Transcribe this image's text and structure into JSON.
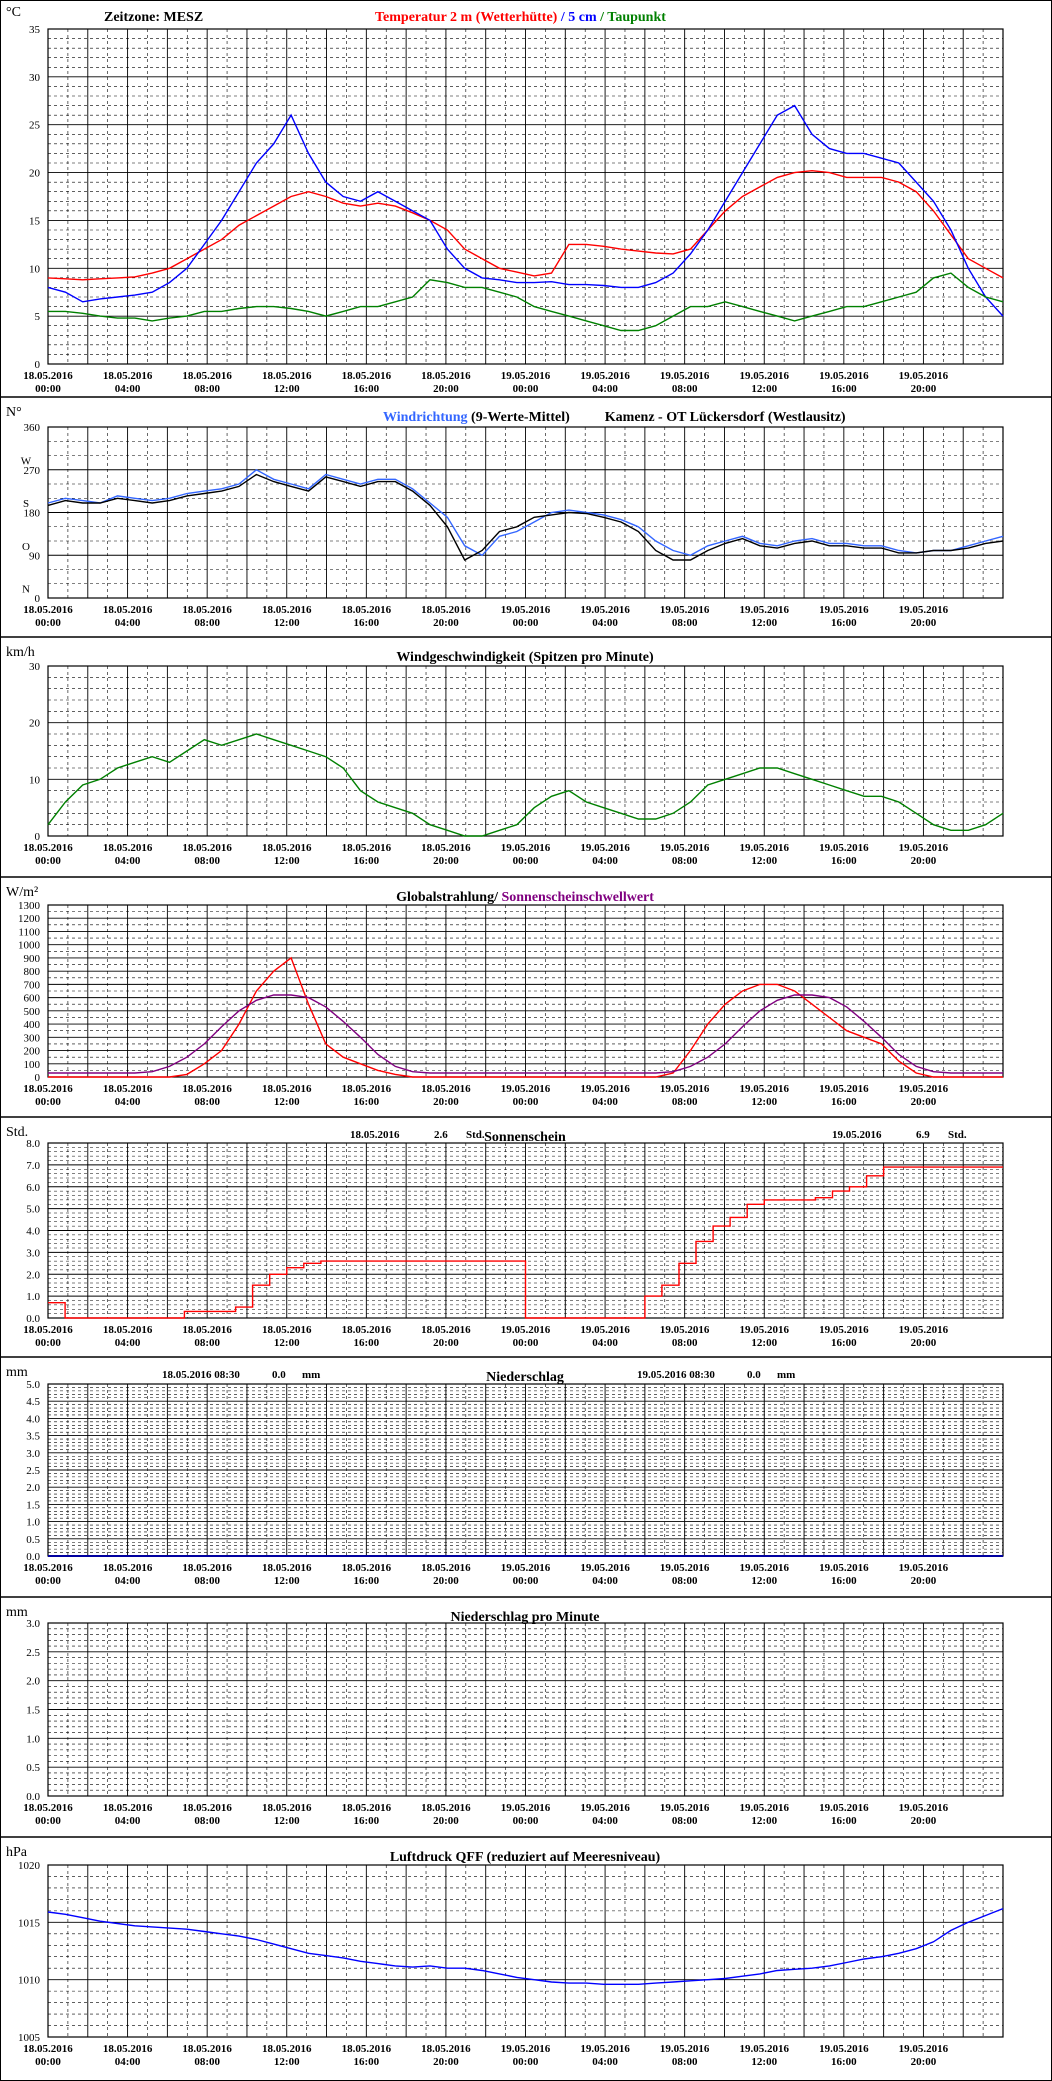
{
  "x_axis": {
    "ticks": [
      {
        "date": "18.05.2016",
        "time": "00:00"
      },
      {
        "date": "18.05.2016",
        "time": "04:00"
      },
      {
        "date": "18.05.2016",
        "time": "08:00"
      },
      {
        "date": "18.05.2016",
        "time": "12:00"
      },
      {
        "date": "18.05.2016",
        "time": "16:00"
      },
      {
        "date": "18.05.2016",
        "time": "20:00"
      },
      {
        "date": "19.05.2016",
        "time": "00:00"
      },
      {
        "date": "19.05.2016",
        "time": "04:00"
      },
      {
        "date": "19.05.2016",
        "time": "08:00"
      },
      {
        "date": "19.05.2016",
        "time": "12:00"
      },
      {
        "date": "19.05.2016",
        "time": "16:00"
      },
      {
        "date": "19.05.2016",
        "time": "20:00"
      }
    ]
  },
  "colors": {
    "temp2m": "#ff0000",
    "temp5cm": "#0000ff",
    "dew": "#008000",
    "wind_dir_mean": "#3366ff",
    "wind_dir": "#000000",
    "wind_speed": "#008000",
    "radiation": "#ff0000",
    "threshold": "#800080",
    "sun": "#ff0000",
    "precip": "#0000a0",
    "pressure": "#0000ff",
    "frame": "#000000"
  },
  "chart_data": [
    {
      "id": "temperature",
      "type": "line",
      "unit": "°C",
      "ylim": [
        0,
        35
      ],
      "yticks": [
        0,
        5,
        10,
        15,
        20,
        25,
        30,
        35
      ],
      "header_left": "Zeitzone: MESZ",
      "title_parts": [
        {
          "text": "Temperatur 2 m (Wetterhütte)",
          "color": "#ff0000"
        },
        {
          "text": " / ",
          "color": "#0000ff"
        },
        {
          "text": "5 cm",
          "color": "#0000ff"
        },
        {
          "text": " / ",
          "color": "#008000"
        },
        {
          "text": "Taupunkt",
          "color": "#008000"
        }
      ],
      "series": [
        {
          "key": "temp2m",
          "values": [
            9.0,
            8.9,
            8.8,
            8.9,
            9.0,
            9.1,
            9.5,
            10.0,
            11.0,
            12.0,
            13.0,
            14.5,
            15.5,
            16.5,
            17.5,
            18.0,
            17.5,
            16.8,
            16.5,
            16.8,
            16.5,
            15.8,
            15.0,
            14.0,
            12.0,
            11.0,
            10.0,
            9.6,
            9.2,
            9.5,
            12.5,
            12.5,
            12.3,
            12.0,
            11.8,
            11.6,
            11.5,
            12.0,
            14.0,
            16.0,
            17.5,
            18.5,
            19.5,
            20.0,
            20.2,
            20.0,
            19.5,
            19.5,
            19.5,
            19.0,
            18.0,
            16.0,
            13.5,
            11.0,
            10.0,
            9.0
          ]
        },
        {
          "key": "temp5cm",
          "values": [
            8.0,
            7.5,
            6.5,
            6.8,
            7.0,
            7.2,
            7.5,
            8.5,
            10.0,
            12.5,
            15.0,
            18.0,
            21.0,
            23.0,
            26.0,
            22.0,
            19.0,
            17.5,
            17.0,
            18.0,
            17.0,
            16.0,
            15.0,
            12.0,
            10.0,
            9.0,
            8.8,
            8.5,
            8.5,
            8.6,
            8.3,
            8.3,
            8.2,
            8.0,
            8.0,
            8.5,
            9.5,
            11.5,
            14.0,
            17.0,
            20.0,
            23.0,
            26.0,
            27.0,
            24.0,
            22.5,
            22.0,
            22.0,
            21.5,
            21.0,
            19.0,
            17.0,
            14.0,
            10.0,
            7.0,
            5.0
          ]
        },
        {
          "key": "dew",
          "values": [
            5.5,
            5.5,
            5.3,
            5.0,
            4.8,
            4.8,
            4.5,
            4.8,
            5.0,
            5.5,
            5.5,
            5.8,
            6.0,
            6.0,
            5.8,
            5.5,
            5.0,
            5.5,
            6.0,
            6.0,
            6.5,
            7.0,
            8.8,
            8.5,
            8.0,
            8.0,
            7.5,
            7.0,
            6.0,
            5.5,
            5.0,
            4.5,
            4.0,
            3.5,
            3.5,
            4.0,
            5.0,
            6.0,
            6.0,
            6.5,
            6.0,
            5.5,
            5.0,
            4.5,
            5.0,
            5.5,
            6.0,
            6.0,
            6.5,
            7.0,
            7.5,
            9.0,
            9.5,
            8.0,
            7.0,
            6.5
          ]
        }
      ]
    },
    {
      "id": "wind_direction",
      "type": "line",
      "unit": "N°",
      "ylim": [
        0,
        360
      ],
      "yticks": [
        0,
        90,
        180,
        270,
        360
      ],
      "compass_labels": [
        "N",
        "O",
        "S",
        "W",
        "N"
      ],
      "compass_values": [
        20,
        110,
        200,
        290,
        360
      ],
      "title_parts": [
        {
          "text": "Windrichtung",
          "color": "#3366ff"
        },
        {
          "text": " (9-Werte-Mittel)",
          "color": "#000000"
        },
        {
          "text": "          Kamenz - OT Lückersdorf (Westlausitz)",
          "color": "#000000"
        }
      ],
      "series": [
        {
          "key": "wind_dir_mean",
          "values": [
            200,
            210,
            205,
            200,
            215,
            210,
            205,
            210,
            220,
            225,
            230,
            240,
            270,
            250,
            240,
            230,
            260,
            250,
            240,
            250,
            250,
            230,
            200,
            170,
            110,
            90,
            130,
            140,
            160,
            180,
            185,
            180,
            175,
            165,
            150,
            120,
            100,
            90,
            110,
            120,
            130,
            115,
            110,
            120,
            125,
            115,
            115,
            110,
            110,
            100,
            95,
            100,
            100,
            110,
            120,
            130
          ]
        },
        {
          "key": "wind_dir",
          "values": [
            195,
            205,
            200,
            200,
            210,
            205,
            200,
            205,
            215,
            220,
            225,
            235,
            260,
            245,
            235,
            225,
            255,
            245,
            235,
            245,
            245,
            225,
            195,
            150,
            80,
            100,
            140,
            150,
            170,
            175,
            180,
            178,
            170,
            160,
            140,
            100,
            80,
            80,
            100,
            115,
            125,
            110,
            105,
            115,
            120,
            110,
            110,
            105,
            105,
            95,
            95,
            100,
            100,
            105,
            115,
            120
          ]
        }
      ]
    },
    {
      "id": "wind_speed",
      "type": "line",
      "unit": "km/h",
      "ylim": [
        0,
        30
      ],
      "yticks": [
        0,
        10,
        20,
        30
      ],
      "title_parts": [
        {
          "text": "Windgeschwindigkeit (Spitzen pro Minute)",
          "color": "#000000"
        }
      ],
      "series": [
        {
          "key": "wind_speed",
          "values": [
            2,
            6,
            9,
            10,
            12,
            13,
            14,
            13,
            15,
            17,
            16,
            17,
            18,
            17,
            16,
            15,
            14,
            12,
            8,
            6,
            5,
            4,
            2,
            1,
            0,
            0,
            1,
            2,
            5,
            7,
            8,
            6,
            5,
            4,
            3,
            3,
            4,
            6,
            9,
            10,
            11,
            12,
            12,
            11,
            10,
            9,
            8,
            7,
            7,
            6,
            4,
            2,
            1,
            1,
            2,
            4
          ]
        }
      ]
    },
    {
      "id": "radiation",
      "type": "line",
      "unit": "W/m²",
      "ylim": [
        0,
        1300
      ],
      "yticks": [
        0,
        100,
        200,
        300,
        400,
        500,
        600,
        700,
        800,
        900,
        1000,
        1100,
        1200,
        1300
      ],
      "title_parts": [
        {
          "text": "Globalstrahlung/ ",
          "color": "#000000"
        },
        {
          "text": "Sonnenscheinschwellwert",
          "color": "#800080"
        }
      ],
      "series": [
        {
          "key": "radiation",
          "values": [
            0,
            0,
            0,
            0,
            0,
            0,
            0,
            0,
            20,
            100,
            200,
            400,
            650,
            800,
            900,
            550,
            250,
            150,
            100,
            50,
            20,
            0,
            0,
            0,
            0,
            0,
            0,
            0,
            0,
            0,
            0,
            0,
            0,
            0,
            0,
            0,
            30,
            200,
            400,
            550,
            650,
            700,
            700,
            650,
            550,
            450,
            350,
            300,
            250,
            120,
            30,
            0,
            0,
            0,
            0,
            0
          ]
        },
        {
          "key": "threshold",
          "values": [
            30,
            30,
            30,
            30,
            30,
            30,
            40,
            80,
            150,
            250,
            380,
            500,
            580,
            620,
            620,
            600,
            530,
            420,
            300,
            170,
            80,
            40,
            30,
            30,
            30,
            30,
            30,
            30,
            30,
            30,
            30,
            30,
            30,
            30,
            30,
            30,
            40,
            80,
            150,
            250,
            380,
            500,
            580,
            620,
            620,
            600,
            530,
            420,
            300,
            170,
            80,
            40,
            30,
            30,
            30,
            30
          ]
        }
      ]
    },
    {
      "id": "sunshine",
      "type": "line",
      "unit": "Std.",
      "ylim": [
        0,
        8
      ],
      "yticks": [
        0,
        1,
        2,
        3,
        4,
        5,
        6,
        7,
        8
      ],
      "ytick_labels": [
        "0.0",
        "1.0",
        "2.0",
        "3.0",
        "4.0",
        "5.0",
        "6.0",
        "7.0",
        "8.0"
      ],
      "title_parts": [
        {
          "text": "Sonnenschein",
          "color": "#000000"
        }
      ],
      "totals": [
        {
          "date": "18.05.2016",
          "value": "2.6",
          "unit": "Std."
        },
        {
          "date": "19.05.2016",
          "value": "6.9",
          "unit": "Std."
        }
      ],
      "series": [
        {
          "key": "sun",
          "values": [
            0.7,
            0.0,
            0.0,
            0.0,
            0.0,
            0.0,
            0.0,
            0.0,
            0.3,
            0.3,
            0.3,
            0.5,
            1.5,
            2.0,
            2.3,
            2.5,
            2.6,
            2.6,
            2.6,
            2.6,
            2.6,
            2.6,
            2.6,
            2.6,
            2.6,
            2.6,
            2.6,
            2.6,
            0.0,
            0.0,
            0.0,
            0.0,
            0.0,
            0.0,
            0.0,
            1.0,
            1.5,
            2.5,
            3.5,
            4.2,
            4.6,
            5.2,
            5.4,
            5.4,
            5.4,
            5.5,
            5.8,
            6.0,
            6.5,
            6.9,
            6.9,
            6.9,
            6.9,
            6.9,
            6.9,
            6.9
          ]
        }
      ]
    },
    {
      "id": "precipitation",
      "type": "line",
      "unit": "mm",
      "ylim": [
        0,
        5
      ],
      "yticks": [
        0,
        0.5,
        1,
        1.5,
        2,
        2.5,
        3,
        3.5,
        4,
        4.5,
        5
      ],
      "ytick_labels": [
        "0.0",
        "0.5",
        "1.0",
        "1.5",
        "2.0",
        "2.5",
        "3.0",
        "3.5",
        "4.0",
        "4.5",
        "5.0"
      ],
      "title_parts": [
        {
          "text": "Niederschlag",
          "color": "#000000"
        }
      ],
      "totals": [
        {
          "date": "18.05.2016 08:30",
          "value": "0.0",
          "unit": "mm"
        },
        {
          "date": "19.05.2016 08:30",
          "value": "0.0",
          "unit": "mm"
        }
      ],
      "series": [
        {
          "key": "precip",
          "values": [
            0,
            0
          ]
        }
      ]
    },
    {
      "id": "precip_minute",
      "type": "line",
      "unit": "mm",
      "ylim": [
        0,
        3
      ],
      "yticks": [
        0,
        0.5,
        1,
        1.5,
        2,
        2.5,
        3
      ],
      "ytick_labels": [
        "0.0",
        "0.5",
        "1.0",
        "1.5",
        "2.0",
        "2.5",
        "3.0"
      ],
      "title_parts": [
        {
          "text": "Niederschlag pro Minute",
          "color": "#000000"
        }
      ],
      "series": []
    },
    {
      "id": "pressure",
      "type": "line",
      "unit": "hPa",
      "ylim": [
        1005,
        1020
      ],
      "yticks": [
        1005,
        1010,
        1015,
        1020
      ],
      "title_parts": [
        {
          "text": "Luftdruck QFF (reduziert auf Meeresniveau)",
          "color": "#000000"
        }
      ],
      "series": [
        {
          "key": "pressure",
          "values": [
            1015.9,
            1015.7,
            1015.4,
            1015.1,
            1014.9,
            1014.7,
            1014.6,
            1014.5,
            1014.4,
            1014.2,
            1014.0,
            1013.8,
            1013.5,
            1013.1,
            1012.7,
            1012.3,
            1012.1,
            1011.9,
            1011.6,
            1011.4,
            1011.2,
            1011.1,
            1011.2,
            1011.0,
            1011.0,
            1010.8,
            1010.5,
            1010.2,
            1010.0,
            1009.8,
            1009.7,
            1009.7,
            1009.6,
            1009.6,
            1009.6,
            1009.7,
            1009.8,
            1009.9,
            1010.0,
            1010.1,
            1010.3,
            1010.5,
            1010.8,
            1010.9,
            1011.0,
            1011.2,
            1011.5,
            1011.8,
            1012.0,
            1012.3,
            1012.7,
            1013.3,
            1014.3,
            1015.0,
            1015.6,
            1016.2
          ]
        }
      ]
    }
  ]
}
